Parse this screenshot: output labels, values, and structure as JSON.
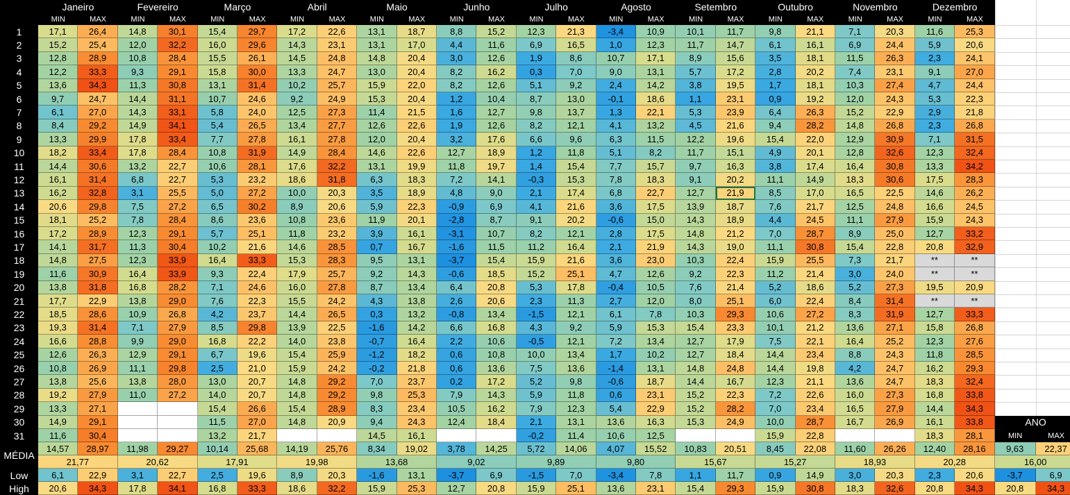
{
  "months": [
    "Janeiro",
    "Fevereiro",
    "Março",
    "Abril",
    "Maio",
    "Junho",
    "Julho",
    "Agosto",
    "Setembro",
    "Outubro",
    "Novembro",
    "Dezembro"
  ],
  "min_label": "MIN",
  "max_label": "MAX",
  "days": [
    "1",
    "2",
    "3",
    "4",
    "5",
    "6",
    "7",
    "8",
    "9",
    "10",
    "11",
    "12",
    "13",
    "14",
    "15",
    "16",
    "17",
    "18",
    "19",
    "20",
    "21",
    "22",
    "23",
    "24",
    "25",
    "26",
    "27",
    "28",
    "29",
    "30",
    "31"
  ],
  "rows": [
    [
      "17,1",
      "26,4",
      "14,8",
      "30,1",
      "15,4",
      "29,7",
      "17,2",
      "22,6",
      "13,1",
      "18,7",
      "8,8",
      "15,2",
      "12,3",
      "21,3",
      "-3,4",
      "10,9",
      "10,1",
      "11,7",
      "9,8",
      "21,1",
      "7,1",
      "20,3",
      "11,6",
      "25,3"
    ],
    [
      "15,2",
      "25,4",
      "12,0",
      "32,2",
      "16,0",
      "29,6",
      "14,3",
      "23,1",
      "13,1",
      "17,0",
      "4,4",
      "11,6",
      "6,9",
      "16,5",
      "1,0",
      "12,3",
      "11,7",
      "14,7",
      "6,1",
      "16,1",
      "6,9",
      "24,4",
      "5,9",
      "20,6"
    ],
    [
      "12,8",
      "28,9",
      "10,8",
      "28,4",
      "15,5",
      "26,1",
      "14,5",
      "24,8",
      "14,8",
      "20,4",
      "3,0",
      "12,6",
      "1,9",
      "8,6",
      "10,7",
      "17,1",
      "8,9",
      "15,6",
      "3,5",
      "18,1",
      "11,5",
      "26,3",
      "2,3",
      "24,1"
    ],
    [
      "12,2",
      "33,3",
      "9,3",
      "29,1",
      "15,8",
      "30,0",
      "13,3",
      "24,7",
      "13,0",
      "20,4",
      "8,2",
      "16,2",
      "0,3",
      "7,0",
      "9,0",
      "13,1",
      "5,7",
      "17,2",
      "2,8",
      "20,2",
      "7,4",
      "23,1",
      "9,1",
      "27,0"
    ],
    [
      "13,6",
      "34,3",
      "11,3",
      "30,8",
      "13,1",
      "31,4",
      "10,2",
      "25,7",
      "15,9",
      "22,0",
      "8,2",
      "12,6",
      "5,1",
      "9,2",
      "2,4",
      "14,2",
      "3,8",
      "19,5",
      "1,7",
      "18,1",
      "10,3",
      "27,4",
      "4,7",
      "24,4"
    ],
    [
      "9,7",
      "24,7",
      "14,4",
      "31,1",
      "10,7",
      "24,6",
      "9,2",
      "24,9",
      "15,3",
      "20,4",
      "1,2",
      "10,4",
      "8,7",
      "13,0",
      "-0,1",
      "18,6",
      "1,1",
      "23,1",
      "0,9",
      "19,2",
      "12,0",
      "24,3",
      "5,3",
      "22,3"
    ],
    [
      "6,1",
      "27,0",
      "14,3",
      "33,1",
      "5,8",
      "24,0",
      "12,5",
      "27,3",
      "11,4",
      "21,5",
      "1,6",
      "12,7",
      "9,8",
      "13,7",
      "1,3",
      "22,1",
      "5,3",
      "23,9",
      "6,4",
      "26,3",
      "15,2",
      "22,9",
      "2,9",
      "21,8"
    ],
    [
      "8,4",
      "29,2",
      "14,9",
      "34,1",
      "5,4",
      "26,5",
      "13,4",
      "27,7",
      "12,6",
      "22,6",
      "1,9",
      "12,6",
      "8,2",
      "12,1",
      "4,1",
      "13,2",
      "4,5",
      "21,6",
      "9,4",
      "28,2",
      "14,8",
      "26,8",
      "2,3",
      "26,8"
    ],
    [
      "13,3",
      "29,9",
      "17,8",
      "33,4",
      "7,7",
      "27,8",
      "16,1",
      "27,8",
      "12,0",
      "20,4",
      "3,2",
      "17,6",
      "6,6",
      "9,6",
      "6,3",
      "11,5",
      "12,2",
      "19,6",
      "15,4",
      "22,0",
      "12,9",
      "30,9",
      "7,1",
      "31,5"
    ],
    [
      "18,2",
      "33,4",
      "17,8",
      "28,4",
      "10,8",
      "31,9",
      "14,9",
      "28,4",
      "14,6",
      "22,6",
      "12,7",
      "18,9",
      "1,2",
      "11,8",
      "5,1",
      "8,2",
      "11,7",
      "15,1",
      "4,9",
      "20,1",
      "12,8",
      "32,6",
      "12,3",
      "32,4"
    ],
    [
      "14,4",
      "30,6",
      "13,2",
      "22,7",
      "10,6",
      "28,1",
      "17,6",
      "32,2",
      "13,1",
      "19,9",
      "11,8",
      "19,7",
      "1,4",
      "15,4",
      "7,7",
      "15,7",
      "9,7",
      "16,3",
      "3,8",
      "17,4",
      "16,4",
      "30,8",
      "13,3",
      "34,2"
    ],
    [
      "16,1",
      "31,4",
      "6,8",
      "22,7",
      "5,3",
      "23,2",
      "18,6",
      "31,8",
      "6,3",
      "18,3",
      "7,2",
      "14,1",
      "-0,3",
      "15,3",
      "7,8",
      "18,3",
      "9,1",
      "20,2",
      "11,1",
      "14,9",
      "18,3",
      "30,6",
      "17,5",
      "28,3"
    ],
    [
      "16,2",
      "32,8",
      "3,1",
      "25,5",
      "5,0",
      "27,2",
      "10,0",
      "20,3",
      "3,5",
      "18,9",
      "4,8",
      "9,0",
      "2,1",
      "17,4",
      "6,8",
      "22,7",
      "12,7",
      "21,9",
      "8,5",
      "17,0",
      "16,5",
      "22,5",
      "14,6",
      "26,2"
    ],
    [
      "20,6",
      "29,8",
      "7,5",
      "27,2",
      "6,5",
      "30,2",
      "8,9",
      "20,6",
      "5,9",
      "22,3",
      "-0,9",
      "6,9",
      "4,1",
      "21,6",
      "3,6",
      "17,5",
      "13,9",
      "18,7",
      "7,6",
      "21,7",
      "12,5",
      "24,8",
      "16,6",
      "24,5"
    ],
    [
      "18,1",
      "25,2",
      "7,8",
      "28,4",
      "8,6",
      "23,6",
      "10,8",
      "23,6",
      "11,9",
      "20,1",
      "-2,8",
      "8,7",
      "9,1",
      "20,2",
      "-0,6",
      "15,0",
      "14,3",
      "18,9",
      "4,4",
      "24,5",
      "11,1",
      "27,9",
      "15,9",
      "24,3"
    ],
    [
      "17,2",
      "28,9",
      "12,3",
      "29,1",
      "5,7",
      "25,1",
      "11,8",
      "23,2",
      "3,9",
      "16,1",
      "-3,1",
      "10,7",
      "8,2",
      "12,1",
      "2,8",
      "17,5",
      "14,8",
      "21,2",
      "7,0",
      "28,7",
      "8,9",
      "25,0",
      "12,7",
      "33,2"
    ],
    [
      "14,1",
      "31,7",
      "11,3",
      "30,4",
      "10,2",
      "21,6",
      "14,6",
      "28,5",
      "0,7",
      "16,7",
      "-1,6",
      "11,5",
      "11,2",
      "16,4",
      "2,1",
      "21,9",
      "14,3",
      "19,0",
      "11,1",
      "30,8",
      "15,4",
      "22,8",
      "20,8",
      "32,9"
    ],
    [
      "14,8",
      "27,5",
      "12,3",
      "33,9",
      "16,4",
      "33,3",
      "15,3",
      "28,3",
      "9,5",
      "13,1",
      "-3,7",
      "15,4",
      "15,9",
      "21,6",
      "3,6",
      "23,0",
      "10,3",
      "22,4",
      "15,9",
      "25,5",
      "7,3",
      "21,7",
      "**",
      "**"
    ],
    [
      "11,6",
      "30,9",
      "16,4",
      "33,9",
      "9,3",
      "22,4",
      "17,9",
      "25,7",
      "9,2",
      "14,3",
      "-0,6",
      "18,5",
      "15,2",
      "25,1",
      "4,7",
      "12,6",
      "9,2",
      "22,3",
      "11,2",
      "21,4",
      "3,0",
      "24,0",
      "**",
      "**"
    ],
    [
      "13,8",
      "31,8",
      "16,8",
      "28,2",
      "7,1",
      "24,6",
      "16,0",
      "27,8",
      "8,7",
      "13,4",
      "6,4",
      "20,8",
      "5,3",
      "17,8",
      "-0,4",
      "10,5",
      "7,6",
      "21,4",
      "5,2",
      "18,6",
      "5,2",
      "27,3",
      "19,5",
      "20,9"
    ],
    [
      "17,7",
      "22,9",
      "13,8",
      "29,0",
      "7,6",
      "22,3",
      "15,5",
      "24,2",
      "4,3",
      "13,8",
      "2,6",
      "20,6",
      "2,3",
      "11,3",
      "2,7",
      "12,0",
      "8,0",
      "25,1",
      "6,0",
      "22,4",
      "8,4",
      "31,4",
      "**",
      "**"
    ],
    [
      "18,5",
      "28,6",
      "10,9",
      "26,8",
      "4,2",
      "23,7",
      "14,4",
      "26,5",
      "0,3",
      "13,2",
      "-0,8",
      "13,4",
      "-1,5",
      "12,1",
      "6,1",
      "7,8",
      "10,3",
      "29,3",
      "10,6",
      "27,2",
      "8,3",
      "31,9",
      "12,7",
      "33,3"
    ],
    [
      "19,3",
      "31,4",
      "7,1",
      "27,9",
      "8,5",
      "29,8",
      "13,9",
      "22,5",
      "-1,6",
      "14,2",
      "6,6",
      "16,8",
      "4,3",
      "9,2",
      "5,9",
      "15,3",
      "15,4",
      "23,3",
      "10,1",
      "21,2",
      "13,6",
      "27,1",
      "15,8",
      "26,8"
    ],
    [
      "16,6",
      "28,8",
      "9,9",
      "29,0",
      "16,8",
      "22,2",
      "14,0",
      "23,8",
      "-0,7",
      "16,4",
      "2,2",
      "10,6",
      "-0,5",
      "12,1",
      "7,2",
      "13,4",
      "12,7",
      "17,9",
      "7,5",
      "22,1",
      "16,4",
      "25,2",
      "12,3",
      "27,6"
    ],
    [
      "12,6",
      "26,3",
      "12,9",
      "29,1",
      "6,7",
      "19,6",
      "15,4",
      "25,9",
      "-1,2",
      "18,2",
      "0,6",
      "10,8",
      "10,0",
      "13,4",
      "1,7",
      "10,2",
      "12,7",
      "18,4",
      "14,4",
      "23,4",
      "8,8",
      "24,3",
      "11,8",
      "28,5"
    ],
    [
      "10,8",
      "26,9",
      "11,1",
      "29,8",
      "2,5",
      "21,0",
      "15,9",
      "24,2",
      "-0,2",
      "21,8",
      "0,6",
      "13,6",
      "7,5",
      "13,6",
      "-1,4",
      "13,1",
      "14,8",
      "24,8",
      "14,4",
      "19,8",
      "4,2",
      "24,7",
      "16,2",
      "29,3"
    ],
    [
      "13,8",
      "25,6",
      "13,8",
      "28,0",
      "13,0",
      "20,7",
      "14,8",
      "29,2",
      "7,0",
      "23,7",
      "0,2",
      "17,2",
      "5,2",
      "9,8",
      "-0,6",
      "18,7",
      "14,4",
      "16,7",
      "12,3",
      "21,1",
      "13,6",
      "24,7",
      "18,3",
      "32,4"
    ],
    [
      "19,2",
      "27,9",
      "11,0",
      "27,2",
      "14,0",
      "20,7",
      "14,8",
      "29,2",
      "9,8",
      "25,3",
      "7,9",
      "14,3",
      "5,9",
      "11,8",
      "0,6",
      "23,1",
      "15,2",
      "22,3",
      "7,2",
      "22,6",
      "16,0",
      "27,3",
      "16,8",
      "33,8"
    ],
    [
      "13,3",
      "27,1",
      "",
      "",
      "15,4",
      "26,6",
      "15,4",
      "28,9",
      "8,3",
      "23,4",
      "10,5",
      "16,2",
      "7,9",
      "12,3",
      "5,4",
      "22,9",
      "15,2",
      "28,2",
      "7,0",
      "23,4",
      "16,5",
      "27,9",
      "14,4",
      "34,3"
    ],
    [
      "14,9",
      "29,1",
      "",
      "",
      "11,5",
      "27,0",
      "14,8",
      "20,9",
      "9,4",
      "24,3",
      "12,4",
      "18,4",
      "2,1",
      "13,1",
      "13,6",
      "16,3",
      "15,3",
      "24,9",
      "10,0",
      "28,7",
      "16,7",
      "26,9",
      "16,1",
      "33,8"
    ],
    [
      "11,6",
      "30,4",
      "",
      "",
      "13,2",
      "21,7",
      "",
      "",
      "14,5",
      "16,1",
      "",
      "",
      "-0,2",
      "11,4",
      "10,6",
      "12,5",
      "",
      "",
      "15,9",
      "22,8",
      "",
      "",
      "18,3",
      "28,1"
    ]
  ],
  "media_label": "MÉDIA",
  "media_row": [
    "14,57",
    "28,97",
    "11,98",
    "29,27",
    "10,14",
    "25,68",
    "14,19",
    "25,76",
    "8,34",
    "19,02",
    "3,78",
    "14,25",
    "5,72",
    "14,06",
    "4,07",
    "15,52",
    "10,83",
    "20,51",
    "8,45",
    "22,08",
    "11,60",
    "26,26",
    "12,40",
    "28,16"
  ],
  "media_month": [
    "21,77",
    "20,62",
    "17,91",
    "19,98",
    "13,68",
    "9,02",
    "9,89",
    "9,80",
    "15,67",
    "15,27",
    "18,93",
    "20,28"
  ],
  "low_label": "Low",
  "low_row": [
    "6,1",
    "22,9",
    "3,1",
    "22,7",
    "2,5",
    "19,6",
    "8,9",
    "20,3",
    "-1,6",
    "13,1",
    "-3,7",
    "6,9",
    "-1,5",
    "7,0",
    "-3,4",
    "7,8",
    "1,1",
    "11,7",
    "0,9",
    "14,9",
    "3,0",
    "20,3",
    "2,3",
    "20,6"
  ],
  "high_label": "High",
  "high_row": [
    "20,6",
    "34,3",
    "17,8",
    "34,1",
    "16,8",
    "33,3",
    "18,6",
    "32,2",
    "15,9",
    "25,3",
    "12,7",
    "20,8",
    "15,9",
    "25,1",
    "13,6",
    "23,1",
    "15,4",
    "29,3",
    "15,9",
    "30,8",
    "18,3",
    "32,6",
    "20,8",
    "34,3"
  ],
  "ano": {
    "title": "ANO",
    "min_label": "MIN",
    "max_label": "MAX",
    "media": [
      "9,63",
      "22,37"
    ],
    "media_total": "16,00",
    "low": [
      "-3,7",
      "6,9"
    ],
    "high": [
      "20,8",
      "34,3"
    ]
  },
  "selected_cell": {
    "row": 13,
    "col": 17
  },
  "colors": {
    "header_bg": "#000000",
    "header_text": "#ffffff",
    "empty_gray": "#d9d9d9",
    "gridline": "#d4d4d4",
    "selection": "#217346"
  }
}
